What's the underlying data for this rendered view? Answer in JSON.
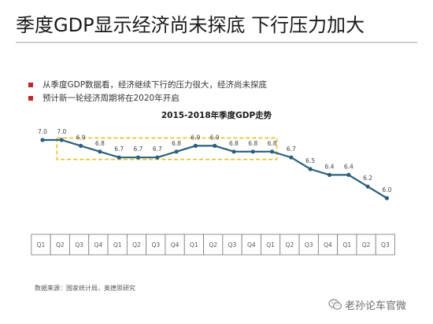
{
  "slide": {
    "title": "季度GDP显示经济尚未探底  下行压力加大",
    "bullets": [
      "从季度GDP数据看，经济继续下行的压力很大，经济尚未探底",
      "预计新一轮经济周期将在2020年开启"
    ],
    "source": "数据来源：国家统计局，奥德思研究",
    "watermark": "老孙论车官微",
    "accent_color": "#c0262d"
  },
  "chart_data": {
    "type": "line",
    "title": "2015-2018年季度GDP走势",
    "categories": [
      "Q1",
      "Q2",
      "Q3",
      "Q4",
      "Q1",
      "Q2",
      "Q3",
      "Q4",
      "Q1",
      "Q2",
      "Q3",
      "Q4",
      "Q1",
      "Q2",
      "Q3",
      "Q4",
      "Q1",
      "Q2",
      "Q3"
    ],
    "values": [
      7.0,
      7.0,
      6.9,
      6.8,
      6.7,
      6.7,
      6.7,
      6.8,
      6.9,
      6.9,
      6.8,
      6.8,
      6.8,
      6.7,
      6.5,
      6.4,
      6.4,
      6.2,
      6.0
    ],
    "data_labels": [
      "7.0",
      "7.0",
      "6.9",
      "6.8",
      "6.7",
      "6.7",
      "6.7",
      "6.8",
      "6.9",
      "6.9",
      "6.8",
      "6.8",
      "6.8",
      "6.7",
      "6.5",
      "6.4",
      "6.4",
      "6.2",
      "6.0"
    ],
    "ylim": [
      5.6,
      7.5
    ],
    "xlabel": "",
    "ylabel": "",
    "line_color": "#2c5f7c",
    "highlight_band": {
      "y_range": [
        6.72,
        6.98
      ],
      "category_range": [
        1,
        12
      ],
      "color": "#e6c029"
    },
    "legend": "none",
    "grid": false
  }
}
